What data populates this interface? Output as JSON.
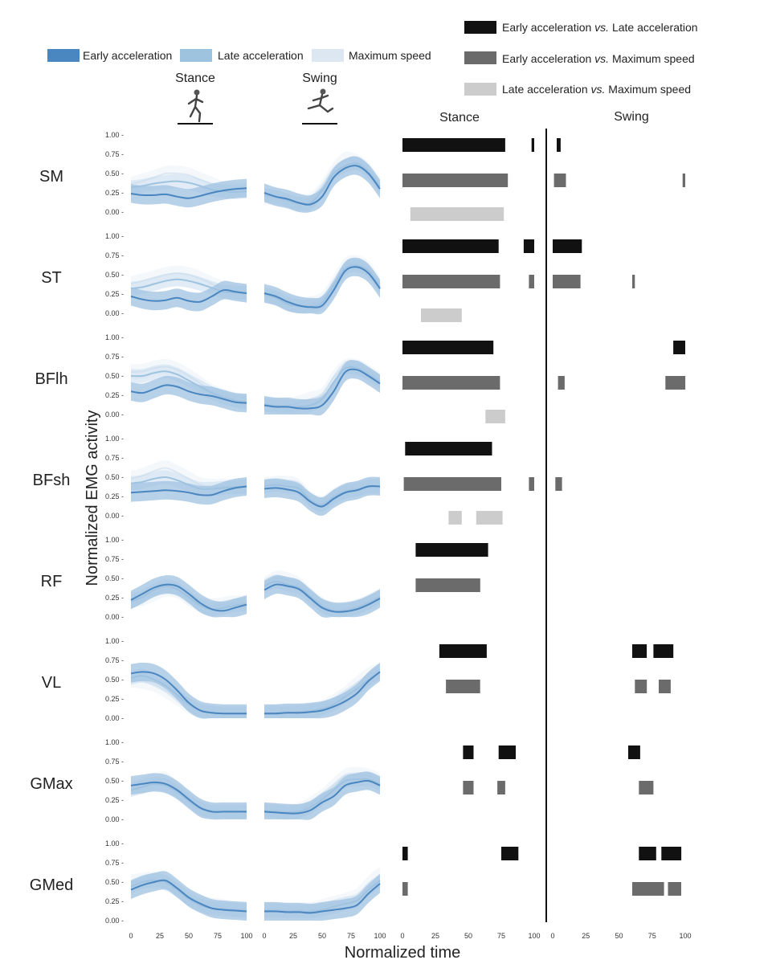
{
  "legend_emg": [
    {
      "label": "Early acceleration",
      "color": "#4a86c0",
      "band": "#9fc1e2"
    },
    {
      "label": "Late acceleration",
      "color": "#9ec3df",
      "band": "#c9ddef"
    },
    {
      "label": "Maximum speed",
      "color": "#dde7f2",
      "band": "#edf2f8"
    }
  ],
  "legend_stats": [
    {
      "prefix": "Early acceleration ",
      "vs": "vs.",
      "suffix": " Late acceleration",
      "color": "#111111"
    },
    {
      "prefix": "Early acceleration ",
      "vs": "vs.",
      "suffix": " Maximum speed",
      "color": "#6b6b6b"
    },
    {
      "prefix": "Late acceleration ",
      "vs": "vs.",
      "suffix": " Maximum speed",
      "color": "#cccccc"
    }
  ],
  "labels": {
    "stance": "Stance",
    "swing": "Swing",
    "ylabel": "Normalized EMG activity",
    "xlabel": "Normalized time"
  },
  "icons": [
    "runner-stance-icon",
    "runner-swing-icon"
  ],
  "chart_data": {
    "type": "line",
    "yticks": [
      "0.00",
      "0.25",
      "0.50",
      "0.75",
      "1.00"
    ],
    "xticks": [
      "0",
      "25",
      "50",
      "75",
      "100"
    ],
    "ylim": [
      0,
      1
    ],
    "xlim": [
      0,
      100
    ],
    "x": [
      0,
      10,
      20,
      30,
      40,
      50,
      60,
      70,
      80,
      90,
      100
    ],
    "muscles": [
      {
        "name": "SM",
        "stance": [
          [
            0.24,
            0.22,
            0.22,
            0.23,
            0.2,
            0.18,
            0.21,
            0.25,
            0.28,
            0.3,
            0.31
          ],
          [
            0.32,
            0.34,
            0.37,
            0.39,
            0.4,
            0.38,
            0.34,
            0.29,
            0.27,
            0.26,
            0.27
          ],
          [
            0.36,
            0.4,
            0.45,
            0.5,
            0.5,
            0.48,
            0.42,
            0.36,
            0.3,
            0.28,
            0.28
          ]
        ],
        "swing": [
          [
            0.25,
            0.2,
            0.17,
            0.12,
            0.1,
            0.2,
            0.45,
            0.57,
            0.6,
            0.5,
            0.3
          ],
          [
            0.22,
            0.2,
            0.15,
            0.11,
            0.12,
            0.28,
            0.5,
            0.6,
            0.63,
            0.52,
            0.33
          ],
          [
            0.2,
            0.18,
            0.14,
            0.12,
            0.15,
            0.32,
            0.55,
            0.68,
            0.65,
            0.55,
            0.36
          ]
        ],
        "sig_stance": [
          [
            [
              0,
              78
            ],
            [
              98,
              100
            ]
          ],
          [
            [
              0,
              80
            ]
          ],
          [
            [
              6,
              77
            ]
          ]
        ],
        "sig_swing": [
          [
            [
              3,
              6
            ]
          ],
          [
            [
              1,
              10
            ],
            [
              98,
              100
            ]
          ],
          []
        ]
      },
      {
        "name": "ST",
        "stance": [
          [
            0.22,
            0.18,
            0.16,
            0.17,
            0.2,
            0.16,
            0.15,
            0.22,
            0.3,
            0.28,
            0.26
          ],
          [
            0.32,
            0.34,
            0.38,
            0.42,
            0.44,
            0.42,
            0.38,
            0.33,
            0.28,
            0.27,
            0.26
          ],
          [
            0.38,
            0.42,
            0.46,
            0.5,
            0.52,
            0.5,
            0.45,
            0.38,
            0.32,
            0.29,
            0.28
          ]
        ],
        "swing": [
          [
            0.26,
            0.22,
            0.15,
            0.1,
            0.08,
            0.1,
            0.3,
            0.55,
            0.6,
            0.52,
            0.32
          ],
          [
            0.25,
            0.2,
            0.12,
            0.09,
            0.09,
            0.14,
            0.36,
            0.58,
            0.62,
            0.55,
            0.34
          ],
          [
            0.23,
            0.2,
            0.14,
            0.11,
            0.12,
            0.18,
            0.4,
            0.62,
            0.65,
            0.58,
            0.38
          ]
        ],
        "sig_stance": [
          [
            [
              0,
              73
            ],
            [
              92,
              100
            ]
          ],
          [
            [
              0,
              74
            ],
            [
              96,
              100
            ]
          ],
          [
            [
              14,
              45
            ]
          ]
        ],
        "sig_swing": [
          [
            [
              0,
              22
            ]
          ],
          [
            [
              0,
              21
            ],
            [
              60,
              62
            ]
          ],
          []
        ]
      },
      {
        "name": "BFlh",
        "stance": [
          [
            0.3,
            0.28,
            0.33,
            0.38,
            0.36,
            0.3,
            0.26,
            0.24,
            0.2,
            0.16,
            0.15
          ],
          [
            0.5,
            0.5,
            0.54,
            0.56,
            0.52,
            0.44,
            0.36,
            0.28,
            0.22,
            0.18,
            0.16
          ],
          [
            0.55,
            0.56,
            0.6,
            0.62,
            0.58,
            0.5,
            0.4,
            0.3,
            0.24,
            0.19,
            0.17
          ]
        ],
        "swing": [
          [
            0.12,
            0.1,
            0.1,
            0.08,
            0.08,
            0.12,
            0.3,
            0.55,
            0.58,
            0.5,
            0.4
          ],
          [
            0.13,
            0.11,
            0.1,
            0.1,
            0.12,
            0.2,
            0.42,
            0.6,
            0.6,
            0.52,
            0.42
          ],
          [
            0.14,
            0.12,
            0.12,
            0.15,
            0.2,
            0.25,
            0.48,
            0.62,
            0.62,
            0.55,
            0.45
          ]
        ],
        "sig_stance": [
          [
            [
              0,
              69
            ]
          ],
          [
            [
              0,
              74
            ]
          ],
          [
            [
              63,
              78
            ]
          ]
        ],
        "sig_swing": [
          [
            [
              91,
              100
            ]
          ],
          [
            [
              4,
              9
            ],
            [
              85,
              100
            ]
          ],
          []
        ]
      },
      {
        "name": "BFsh",
        "stance": [
          [
            0.3,
            0.31,
            0.32,
            0.33,
            0.32,
            0.3,
            0.27,
            0.27,
            0.32,
            0.36,
            0.38
          ],
          [
            0.42,
            0.44,
            0.48,
            0.5,
            0.46,
            0.4,
            0.35,
            0.35,
            0.36,
            0.37,
            0.38
          ],
          [
            0.48,
            0.52,
            0.58,
            0.62,
            0.56,
            0.48,
            0.4,
            0.38,
            0.38,
            0.38,
            0.38
          ]
        ],
        "swing": [
          [
            0.35,
            0.36,
            0.34,
            0.3,
            0.18,
            0.12,
            0.22,
            0.3,
            0.33,
            0.38,
            0.38
          ],
          [
            0.38,
            0.4,
            0.38,
            0.35,
            0.2,
            0.14,
            0.24,
            0.31,
            0.34,
            0.38,
            0.38
          ],
          [
            0.4,
            0.42,
            0.42,
            0.38,
            0.22,
            0.16,
            0.26,
            0.32,
            0.35,
            0.38,
            0.38
          ]
        ],
        "sig_stance": [
          [
            [
              2,
              68
            ]
          ],
          [
            [
              1,
              75
            ],
            [
              96,
              100
            ]
          ],
          [
            [
              35,
              45
            ],
            [
              56,
              76
            ]
          ]
        ],
        "sig_swing": [
          [],
          [
            [
              2,
              7
            ]
          ],
          []
        ]
      },
      {
        "name": "RF",
        "stance": [
          [
            0.22,
            0.3,
            0.38,
            0.42,
            0.4,
            0.3,
            0.18,
            0.1,
            0.08,
            0.12,
            0.16
          ],
          [
            0.2,
            0.26,
            0.35,
            0.4,
            0.36,
            0.26,
            0.15,
            0.1,
            0.12,
            0.15,
            0.17
          ],
          [
            0.22,
            0.24,
            0.3,
            0.36,
            0.34,
            0.24,
            0.16,
            0.14,
            0.16,
            0.18,
            0.18
          ]
        ],
        "swing": [
          [
            0.35,
            0.42,
            0.4,
            0.36,
            0.24,
            0.12,
            0.07,
            0.07,
            0.1,
            0.16,
            0.24
          ],
          [
            0.4,
            0.46,
            0.42,
            0.38,
            0.26,
            0.14,
            0.08,
            0.08,
            0.12,
            0.18,
            0.26
          ],
          [
            0.42,
            0.5,
            0.48,
            0.42,
            0.28,
            0.16,
            0.09,
            0.1,
            0.14,
            0.2,
            0.28
          ]
        ],
        "sig_stance": [
          [
            [
              10,
              65
            ]
          ],
          [
            [
              10,
              59
            ]
          ],
          []
        ],
        "sig_swing": [
          [],
          [],
          []
        ]
      },
      {
        "name": "VL",
        "stance": [
          [
            0.58,
            0.6,
            0.58,
            0.5,
            0.36,
            0.2,
            0.1,
            0.07,
            0.06,
            0.06,
            0.06
          ],
          [
            0.52,
            0.55,
            0.5,
            0.42,
            0.3,
            0.18,
            0.1,
            0.07,
            0.06,
            0.06,
            0.06
          ],
          [
            0.5,
            0.48,
            0.44,
            0.36,
            0.26,
            0.16,
            0.09,
            0.07,
            0.06,
            0.06,
            0.06
          ]
        ],
        "swing": [
          [
            0.06,
            0.06,
            0.07,
            0.07,
            0.08,
            0.1,
            0.15,
            0.22,
            0.32,
            0.48,
            0.6
          ],
          [
            0.06,
            0.07,
            0.07,
            0.08,
            0.09,
            0.12,
            0.18,
            0.28,
            0.38,
            0.5,
            0.6
          ],
          [
            0.07,
            0.07,
            0.08,
            0.09,
            0.1,
            0.14,
            0.22,
            0.32,
            0.45,
            0.56,
            0.62
          ]
        ],
        "sig_stance": [
          [
            [
              28,
              64
            ]
          ],
          [
            [
              33,
              59
            ]
          ],
          []
        ],
        "sig_swing": [
          [
            [
              60,
              71
            ],
            [
              76,
              91
            ]
          ],
          [
            [
              62,
              71
            ],
            [
              80,
              89
            ]
          ],
          []
        ]
      },
      {
        "name": "GMax",
        "stance": [
          [
            0.44,
            0.46,
            0.48,
            0.46,
            0.38,
            0.26,
            0.15,
            0.1,
            0.1,
            0.1,
            0.1
          ],
          [
            0.38,
            0.42,
            0.46,
            0.44,
            0.36,
            0.24,
            0.14,
            0.1,
            0.1,
            0.1,
            0.1
          ],
          [
            0.4,
            0.44,
            0.5,
            0.52,
            0.4,
            0.28,
            0.16,
            0.12,
            0.11,
            0.11,
            0.1
          ]
        ],
        "swing": [
          [
            0.1,
            0.09,
            0.08,
            0.08,
            0.12,
            0.22,
            0.3,
            0.44,
            0.48,
            0.5,
            0.44
          ],
          [
            0.11,
            0.1,
            0.09,
            0.1,
            0.16,
            0.26,
            0.38,
            0.5,
            0.52,
            0.52,
            0.46
          ],
          [
            0.12,
            0.11,
            0.1,
            0.12,
            0.2,
            0.3,
            0.44,
            0.56,
            0.58,
            0.56,
            0.5
          ]
        ],
        "sig_stance": [
          [
            [
              46,
              54
            ],
            [
              73,
              86
            ]
          ],
          [
            [
              46,
              54
            ],
            [
              72,
              78
            ]
          ],
          []
        ],
        "sig_swing": [
          [
            [
              57,
              66
            ]
          ],
          [
            [
              65,
              76
            ]
          ],
          []
        ]
      },
      {
        "name": "GMed",
        "stance": [
          [
            0.4,
            0.46,
            0.5,
            0.52,
            0.42,
            0.3,
            0.22,
            0.16,
            0.14,
            0.13,
            0.12
          ],
          [
            0.44,
            0.5,
            0.52,
            0.5,
            0.4,
            0.28,
            0.2,
            0.16,
            0.15,
            0.14,
            0.13
          ],
          [
            0.5,
            0.52,
            0.54,
            0.48,
            0.4,
            0.3,
            0.22,
            0.2,
            0.18,
            0.15,
            0.14
          ]
        ],
        "swing": [
          [
            0.12,
            0.12,
            0.11,
            0.11,
            0.1,
            0.12,
            0.14,
            0.16,
            0.2,
            0.35,
            0.48
          ],
          [
            0.13,
            0.13,
            0.12,
            0.12,
            0.12,
            0.14,
            0.18,
            0.22,
            0.26,
            0.4,
            0.52
          ],
          [
            0.14,
            0.14,
            0.14,
            0.14,
            0.14,
            0.18,
            0.22,
            0.26,
            0.32,
            0.48,
            0.6
          ]
        ],
        "sig_stance": [
          [
            [
              0,
              4
            ],
            [
              75,
              88
            ]
          ],
          [
            [
              0,
              4
            ]
          ],
          []
        ],
        "sig_swing": [
          [
            [
              65,
              78
            ],
            [
              82,
              97
            ]
          ],
          [
            [
              60,
              84
            ],
            [
              87,
              97
            ]
          ],
          []
        ]
      }
    ]
  }
}
